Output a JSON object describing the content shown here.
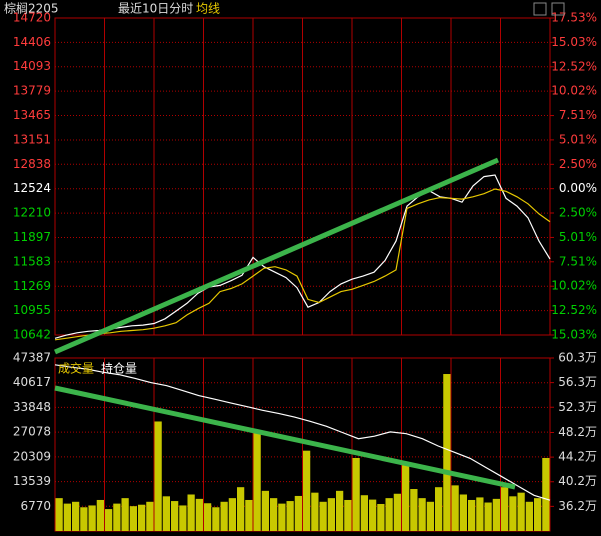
{
  "chart_data": [
    {
      "type": "line",
      "title": "棕榈2205",
      "subtitle": "最近10日分时",
      "series": [
        {
          "color": "#ffffff",
          "values": [
            10600,
            10640,
            10670,
            10690,
            10700,
            10720,
            10740,
            10760,
            10770,
            10790,
            10850,
            10950,
            11050,
            11180,
            11260,
            11280,
            11340,
            11410,
            11640,
            11520,
            11450,
            11380,
            11250,
            11000,
            11060,
            11200,
            11300,
            11360,
            11400,
            11450,
            11600,
            11850,
            12300,
            12420,
            12500,
            12420,
            12400,
            12350,
            12560,
            12680,
            12700,
            12400,
            12300,
            12150,
            11850,
            11620
          ]
        },
        {
          "name": "均线",
          "color": "#e6c800",
          "values": [
            10580,
            10600,
            10620,
            10640,
            10660,
            10670,
            10690,
            10700,
            10710,
            10730,
            10760,
            10800,
            10900,
            10980,
            11050,
            11200,
            11240,
            11300,
            11400,
            11500,
            11520,
            11480,
            11400,
            11100,
            11060,
            11130,
            11200,
            11230,
            11280,
            11330,
            11400,
            11480,
            12270,
            12330,
            12380,
            12410,
            12400,
            12390,
            12420,
            12460,
            12520,
            12490,
            12420,
            12330,
            12200,
            12100
          ]
        }
      ],
      "ylim": [
        10642,
        14720
      ],
      "yticks": [
        14720,
        14406,
        14093,
        13779,
        13465,
        13151,
        12838,
        12524,
        12210,
        11897,
        11583,
        11269,
        10955,
        10642
      ],
      "y2lim": [
        -15.03,
        17.53
      ],
      "y2ticks": [
        {
          "value": 17.53,
          "label": "17.53%"
        },
        {
          "value": 15.03,
          "label": "15.03%"
        },
        {
          "value": 12.52,
          "label": "12.52%"
        },
        {
          "value": 10.02,
          "label": "10.02%"
        },
        {
          "value": 7.51,
          "label": "7.51%"
        },
        {
          "value": 5.01,
          "label": "5.01%"
        },
        {
          "value": 2.5,
          "label": "2.50%"
        },
        {
          "value": 0,
          "label": "0.00%"
        },
        {
          "value": -2.5,
          "label": "2.50%"
        },
        {
          "value": -5.01,
          "label": "5.01%"
        },
        {
          "value": -7.51,
          "label": "7.51%"
        },
        {
          "value": -10.02,
          "label": "10.02%"
        },
        {
          "value": -12.52,
          "label": "12.52%"
        },
        {
          "value": -15.03,
          "label": "15.03%"
        }
      ],
      "grid": true
    },
    {
      "type": "bar",
      "series": [
        {
          "name": "成交量",
          "color": "#c8c800",
          "values": [
            9000,
            7500,
            8000,
            6500,
            7000,
            8500,
            6000,
            7500,
            9000,
            6800,
            7200,
            8000,
            30000,
            9500,
            8200,
            7000,
            10000,
            8800,
            7600,
            6500,
            8000,
            9000,
            12000,
            8500,
            27000,
            11000,
            9000,
            7500,
            8200,
            9600,
            22000,
            10500,
            8000,
            9000,
            11000,
            8500,
            20000,
            9800,
            8600,
            7400,
            9000,
            10200,
            18000,
            11500,
            9000,
            8000,
            12000,
            43000,
            12500,
            10000,
            8500,
            9200,
            7800,
            8800,
            12000,
            9500,
            10500,
            8000,
            9000,
            20000
          ]
        },
        {
          "name": "持仓量",
          "color": "#ffffff",
          "type": "line",
          "axis": "y2",
          "values": [
            59.2,
            58.8,
            58.5,
            58.0,
            57.6,
            57.0,
            56.3,
            55.8,
            55.0,
            54.2,
            53.6,
            53.0,
            52.4,
            51.8,
            51.3,
            50.7,
            50.0,
            49.2,
            48.2,
            47.2,
            47.6,
            48.3,
            48.0,
            47.2,
            46.0,
            45.0,
            44.0,
            42.5,
            41.0,
            39.5,
            38.0,
            37.2
          ]
        }
      ],
      "ylim": [
        0,
        47387
      ],
      "yticks": [
        47387,
        40617,
        33848,
        27078,
        20309,
        13539,
        6770
      ],
      "y2lim": [
        32.2,
        60.3
      ],
      "y2ticks": [
        {
          "value": 60.3,
          "label": "60.3万"
        },
        {
          "value": 56.3,
          "label": "56.3万"
        },
        {
          "value": 52.3,
          "label": "52.3万"
        },
        {
          "value": 48.2,
          "label": "48.2万"
        },
        {
          "value": 44.2,
          "label": "44.2万"
        },
        {
          "value": 40.2,
          "label": "40.2万"
        },
        {
          "value": 36.2,
          "label": "36.2万"
        }
      ],
      "grid": true
    }
  ]
}
